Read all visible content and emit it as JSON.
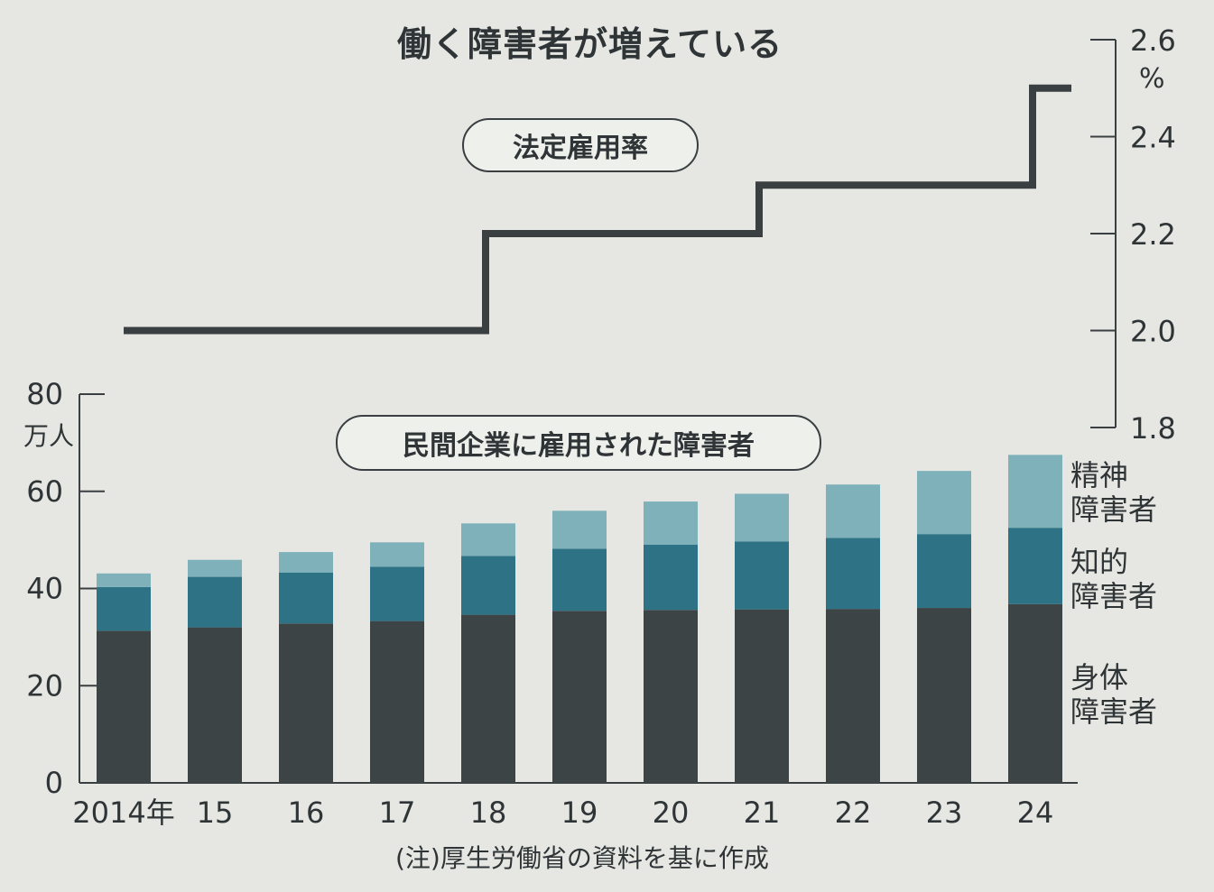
{
  "title": "働く障害者が増えている",
  "note": "(注)厚生労働省の資料を基に作成",
  "chart_data": [
    {
      "type": "line",
      "label": "法定雇用率",
      "unit": "%",
      "step": true,
      "x": [
        "2014年",
        "15",
        "16",
        "17",
        "18",
        "19",
        "20",
        "21",
        "22",
        "23",
        "24"
      ],
      "y": [
        2.0,
        2.0,
        2.0,
        2.0,
        2.2,
        2.2,
        2.2,
        2.3,
        2.3,
        2.3,
        2.5
      ],
      "ylim": [
        1.8,
        2.6
      ],
      "yticks": [
        "1.8",
        "2.0",
        "2.2",
        "2.4",
        "2.6"
      ],
      "axis": "right",
      "color": "#3a3f42"
    },
    {
      "type": "bar",
      "stacked": true,
      "label": "民間企業に雇用された障害者",
      "unit": "万人",
      "categories": [
        "2014年",
        "15",
        "16",
        "17",
        "18",
        "19",
        "20",
        "21",
        "22",
        "23",
        "24"
      ],
      "series": [
        {
          "name": "身体障害者",
          "label_lines": [
            "身体",
            "障害者"
          ],
          "color": "#3c4446",
          "values": [
            31.3,
            32.0,
            32.8,
            33.3,
            34.6,
            35.4,
            35.6,
            35.7,
            35.8,
            36.0,
            36.8
          ]
        },
        {
          "name": "知的障害者",
          "label_lines": [
            "知的",
            "障害者"
          ],
          "color": "#2e7385",
          "values": [
            9.0,
            10.4,
            10.5,
            11.2,
            12.1,
            12.8,
            13.4,
            14.0,
            14.6,
            15.2,
            15.7
          ]
        },
        {
          "name": "精神障害者",
          "label_lines": [
            "精神",
            "障害者"
          ],
          "color": "#7fb1bb",
          "values": [
            2.8,
            3.5,
            4.2,
            5.0,
            6.7,
            7.8,
            8.9,
            9.8,
            11.0,
            13.0,
            15.0
          ]
        }
      ],
      "ylim": [
        0,
        80
      ],
      "yticks": [
        "0",
        "20",
        "40",
        "60",
        "80"
      ],
      "axis": "left"
    }
  ]
}
